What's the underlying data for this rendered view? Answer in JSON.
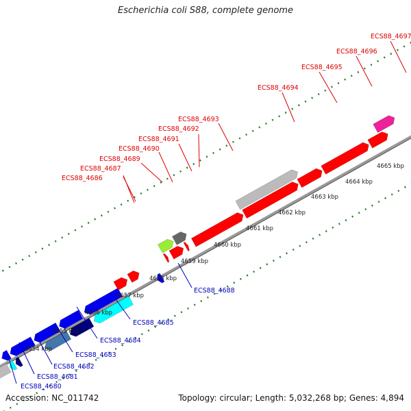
{
  "title": "Escherichia coli S88, complete genome",
  "footer": {
    "accession": "Accession: NC_011742",
    "summary": "Topology: circular; Length: 5,032,268 bp; Genes: 4,894"
  },
  "colors": {
    "forward_label": "#dd0000",
    "reverse_label": "#0000bb",
    "backbone": "#888888",
    "tick": "#2a7a2a"
  },
  "scale_labels": [
    "4654 kbp",
    "4655 kbp",
    "4656 kbp",
    "4657 kbp",
    "4658 kbp",
    "4659 kbp",
    "4660 kbp",
    "4661 kbp",
    "4662 kbp",
    "4663 kbp",
    "4664 kbp",
    "4665 kbp"
  ],
  "forward_labels": [
    "ECS88_4686",
    "ECS88_4687",
    "ECS88_4689",
    "ECS88_4690",
    "ECS88_4691",
    "ECS88_4692",
    "ECS88_4693",
    "ECS88_4694",
    "ECS88_4695",
    "ECS88_4696",
    "ECS88_4697"
  ],
  "reverse_labels": [
    "ECS88_4680",
    "ECS88_4681",
    "ECS88_4682",
    "ECS88_4683",
    "ECS88_4684",
    "ECS88_4685",
    "ECS88_4688"
  ],
  "gene_colors": {
    "red": "#ff0000",
    "grey": "#bbbbbb",
    "lime": "#99ee33",
    "darkgrey": "#666666",
    "magenta": "#ee2299",
    "blue": "#0000ee",
    "cyan": "#00ffff",
    "navy": "#000077",
    "steelblue": "#4477aa"
  }
}
